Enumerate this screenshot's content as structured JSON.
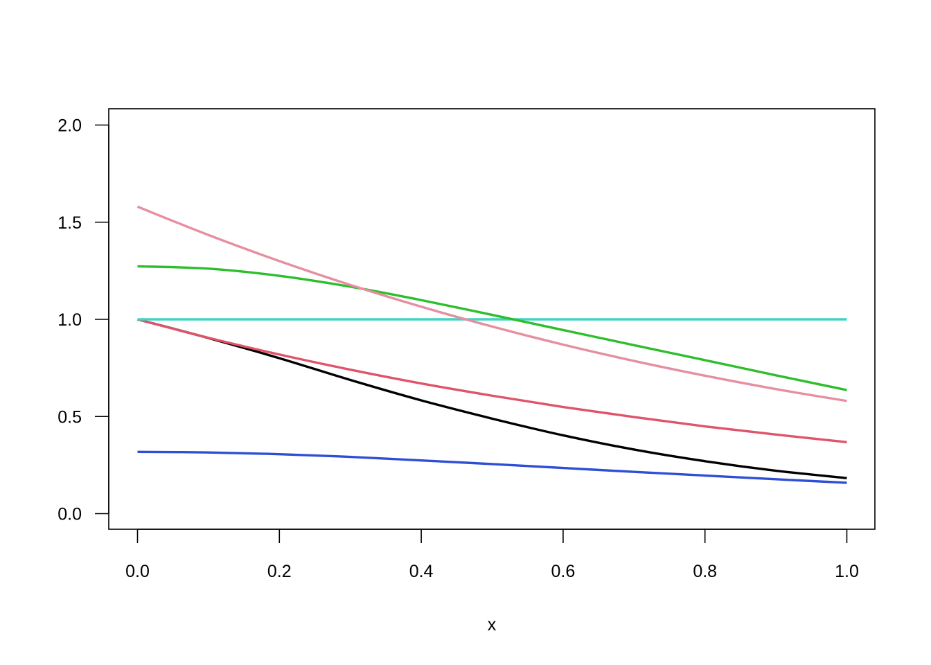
{
  "chart_data": {
    "type": "line",
    "title": "",
    "xlabel": "x",
    "ylabel": "",
    "xlim": [
      0,
      1
    ],
    "ylim": [
      0,
      2
    ],
    "x_ticks": [
      "0.0",
      "0.2",
      "0.4",
      "0.6",
      "0.8",
      "1.0"
    ],
    "y_ticks": [
      "0.0",
      "0.5",
      "1.0",
      "1.5",
      "2.0"
    ],
    "grid": false,
    "legend": "none",
    "x": [
      0,
      0.1,
      0.2,
      0.3,
      0.4,
      0.5,
      0.6,
      0.7,
      0.8,
      0.9,
      1.0
    ],
    "series": [
      {
        "color": "#000000",
        "values": [
          1.0,
          0.904,
          0.8,
          0.688,
          0.583,
          0.489,
          0.403,
          0.33,
          0.27,
          0.221,
          0.183
        ]
      },
      {
        "color": "#DF536B",
        "values": [
          1.0,
          0.905,
          0.819,
          0.741,
          0.67,
          0.607,
          0.549,
          0.497,
          0.449,
          0.407,
          0.368
        ]
      },
      {
        "color": "#40D4C2",
        "values": [
          1.0,
          1.0,
          1.0,
          1.0,
          1.0,
          1.0,
          1.0,
          1.0,
          1.0,
          1.0,
          1.0
        ]
      },
      {
        "color": "#2E4ED6",
        "values": [
          0.318,
          0.315,
          0.306,
          0.292,
          0.274,
          0.255,
          0.235,
          0.215,
          0.196,
          0.177,
          0.159
        ]
      },
      {
        "color": "#2DBE2D",
        "values": [
          1.273,
          1.261,
          1.224,
          1.168,
          1.099,
          1.023,
          0.945,
          0.867,
          0.79,
          0.712,
          0.636
        ]
      },
      {
        "color": "#E58FA0",
        "values": [
          1.58,
          1.434,
          1.3,
          1.177,
          1.065,
          0.963,
          0.87,
          0.786,
          0.71,
          0.641,
          0.58
        ]
      }
    ]
  }
}
